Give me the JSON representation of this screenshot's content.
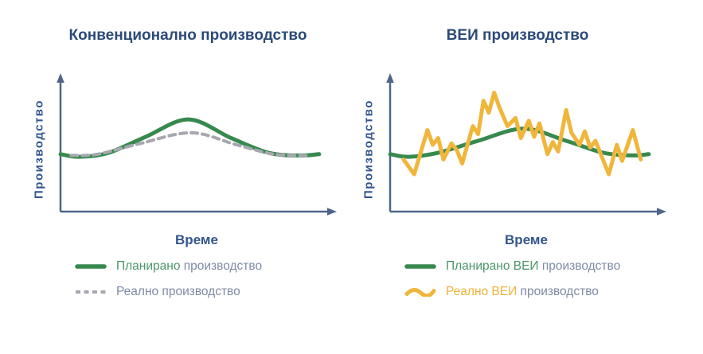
{
  "colors": {
    "title": "#2c4a77",
    "axis": "#4e6488",
    "axis_label": "#33568c",
    "green": "#37894e",
    "gray": "#a7a7b0",
    "yellow": "#f0b63c",
    "legend_green": "#4b9569",
    "legend_yellow": "#f1b23a",
    "legend_text": "#7e8aa6"
  },
  "chart_data": [
    {
      "type": "line",
      "title": "Конвенционално производство",
      "xlabel": "Време",
      "ylabel": "Производство",
      "x_range": [
        0,
        100
      ],
      "y_range": [
        0,
        100
      ],
      "grid": false,
      "legend_position": "bottom-left",
      "axes_note": "qualitative axes, no ticks, arrowheads on both axes",
      "series": [
        {
          "name": "Планирано производство",
          "shape": "smooth",
          "color_key": "green",
          "width": 5,
          "points": [
            [
              0,
              43
            ],
            [
              7,
              41
            ],
            [
              18,
              44
            ],
            [
              32,
              56
            ],
            [
              48,
              69
            ],
            [
              64,
              55
            ],
            [
              78,
              44
            ],
            [
              90,
              42
            ],
            [
              97,
              43
            ]
          ]
        },
        {
          "name": "Реално производство",
          "shape": "smooth",
          "color_key": "gray",
          "width": 4,
          "dash": "8 6",
          "points": [
            [
              4,
              42
            ],
            [
              14,
              43
            ],
            [
              30,
              51
            ],
            [
              49,
              59
            ],
            [
              66,
              50
            ],
            [
              80,
              43
            ],
            [
              93,
              42
            ]
          ]
        }
      ],
      "legend": [
        {
          "swatch": "solid-green-line",
          "highlight": "Планирано",
          "rest": " производство"
        },
        {
          "swatch": "dashed-gray-line",
          "highlight": "",
          "rest": "Реално производство"
        }
      ]
    },
    {
      "type": "line",
      "title": "ВЕИ производство",
      "xlabel": "Време",
      "ylabel": "Производство",
      "x_range": [
        0,
        100
      ],
      "y_range": [
        0,
        100
      ],
      "grid": false,
      "legend_position": "bottom-left",
      "axes_note": "qualitative axes, no ticks, arrowheads on both axes",
      "series": [
        {
          "name": "Планирано ВЕИ производство",
          "shape": "smooth",
          "color_key": "green",
          "width": 5,
          "points": [
            [
              0,
              43
            ],
            [
              7,
              41
            ],
            [
              18,
              44
            ],
            [
              33,
              53
            ],
            [
              50,
              62
            ],
            [
              66,
              53
            ],
            [
              80,
              44
            ],
            [
              91,
              42
            ],
            [
              97,
              43
            ]
          ]
        },
        {
          "name": "Реално ВЕИ производство",
          "shape": "zigzag",
          "color_key": "yellow",
          "width": 5,
          "points": [
            [
              5,
              39
            ],
            [
              9,
              28
            ],
            [
              14,
              61
            ],
            [
              16,
              50
            ],
            [
              18,
              55
            ],
            [
              20,
              39
            ],
            [
              23,
              51
            ],
            [
              25,
              46
            ],
            [
              27,
              36
            ],
            [
              31,
              64
            ],
            [
              33,
              58
            ],
            [
              35,
              83
            ],
            [
              37,
              74
            ],
            [
              39,
              89
            ],
            [
              41,
              78
            ],
            [
              44,
              64
            ],
            [
              47,
              70
            ],
            [
              49,
              55
            ],
            [
              52,
              68
            ],
            [
              54,
              56
            ],
            [
              56,
              66
            ],
            [
              59,
              43
            ],
            [
              61,
              52
            ],
            [
              63,
              45
            ],
            [
              66,
              76
            ],
            [
              68,
              59
            ],
            [
              71,
              50
            ],
            [
              73,
              60
            ],
            [
              75,
              48
            ],
            [
              77,
              53
            ],
            [
              82,
              28
            ],
            [
              85,
              50
            ],
            [
              87,
              38
            ],
            [
              91,
              61
            ],
            [
              94,
              39
            ]
          ]
        }
      ],
      "legend": [
        {
          "swatch": "solid-green-line",
          "highlight": "Планирано ВЕИ",
          "rest": " производство"
        },
        {
          "swatch": "wavy-yellow-line",
          "highlight": "Реално ВЕИ",
          "rest": " производство"
        }
      ]
    }
  ]
}
